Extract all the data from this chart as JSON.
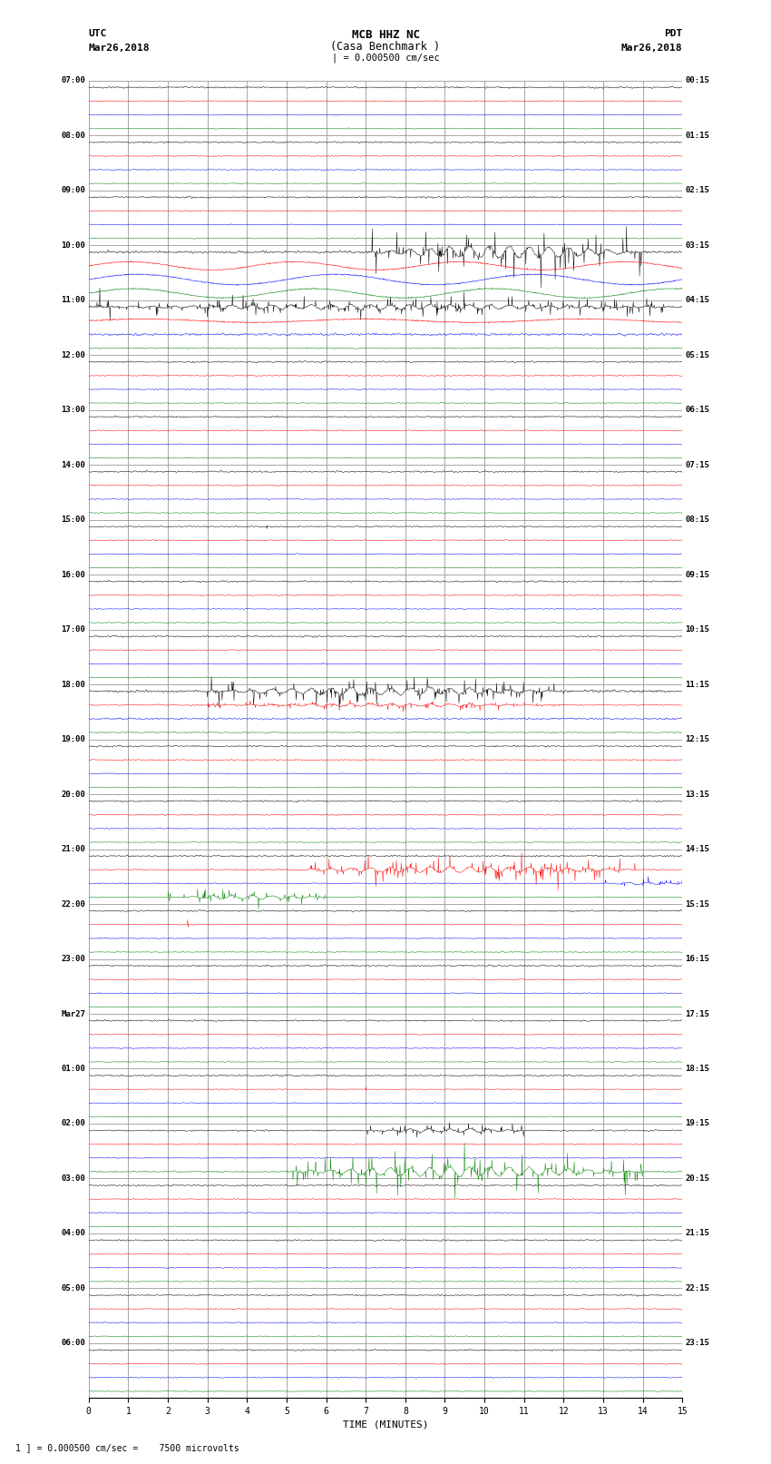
{
  "title_line1": "MCB HHZ NC",
  "title_line2": "(Casa Benchmark )",
  "title_line3": "| = 0.000500 cm/sec",
  "label_utc": "UTC",
  "label_pdt": "PDT",
  "label_date_left": "Mar26,2018",
  "label_date_right": "Mar26,2018",
  "xlabel": "TIME (MINUTES)",
  "footnote": "= 0.000500 cm/sec =    7500 microvolts",
  "bg_color": "#ffffff",
  "grid_color": "#999999",
  "trace_colors": [
    "black",
    "red",
    "blue",
    "green"
  ],
  "left_times_utc": [
    "07:00",
    "08:00",
    "09:00",
    "10:00",
    "11:00",
    "12:00",
    "13:00",
    "14:00",
    "15:00",
    "16:00",
    "17:00",
    "18:00",
    "19:00",
    "20:00",
    "21:00",
    "22:00",
    "23:00",
    "Mar27",
    "01:00",
    "02:00",
    "03:00",
    "04:00",
    "05:00",
    "06:00"
  ],
  "right_times_pdt": [
    "00:15",
    "01:15",
    "02:15",
    "03:15",
    "04:15",
    "05:15",
    "06:15",
    "07:15",
    "08:15",
    "09:15",
    "10:15",
    "11:15",
    "12:15",
    "13:15",
    "14:15",
    "15:15",
    "16:15",
    "17:15",
    "18:15",
    "19:15",
    "20:15",
    "21:15",
    "22:15",
    "23:15"
  ],
  "n_groups": 24,
  "n_traces_per_group": 4,
  "xmin": 0,
  "xmax": 15,
  "xticks": [
    0,
    1,
    2,
    3,
    4,
    5,
    6,
    7,
    8,
    9,
    10,
    11,
    12,
    13,
    14,
    15
  ],
  "noise_seed": 42,
  "earthquake_big_group": 3,
  "earthquake_big2_group": 4,
  "earthquake_moderate_group": 11,
  "earthquake_spike_group": 8,
  "earthquake_red_group": 14,
  "earthquake_red2_group": 15,
  "earthquake_green_group": 19
}
